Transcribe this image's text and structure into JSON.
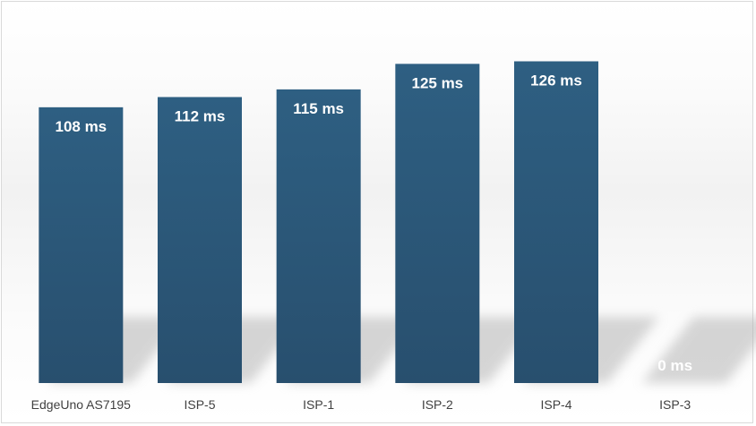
{
  "chart_data": {
    "type": "bar",
    "categories": [
      "EdgeUno AS7195",
      "ISP-5",
      "ISP-1",
      "ISP-2",
      "ISP-4",
      "ISP-3"
    ],
    "values": [
      108,
      112,
      115,
      125,
      126,
      0
    ],
    "data_labels": [
      "108 ms",
      "112 ms",
      "115 ms",
      "125 ms",
      "126 ms",
      "0 ms"
    ],
    "unit": "ms",
    "title": "",
    "xlabel": "",
    "ylabel": "",
    "ylim": [
      0,
      143
    ],
    "grid": false,
    "legend": "none",
    "colors": {
      "bar_top": "#2e5f82",
      "bar_bottom": "#284f6e",
      "empty_label": "#f4f4f4"
    }
  }
}
